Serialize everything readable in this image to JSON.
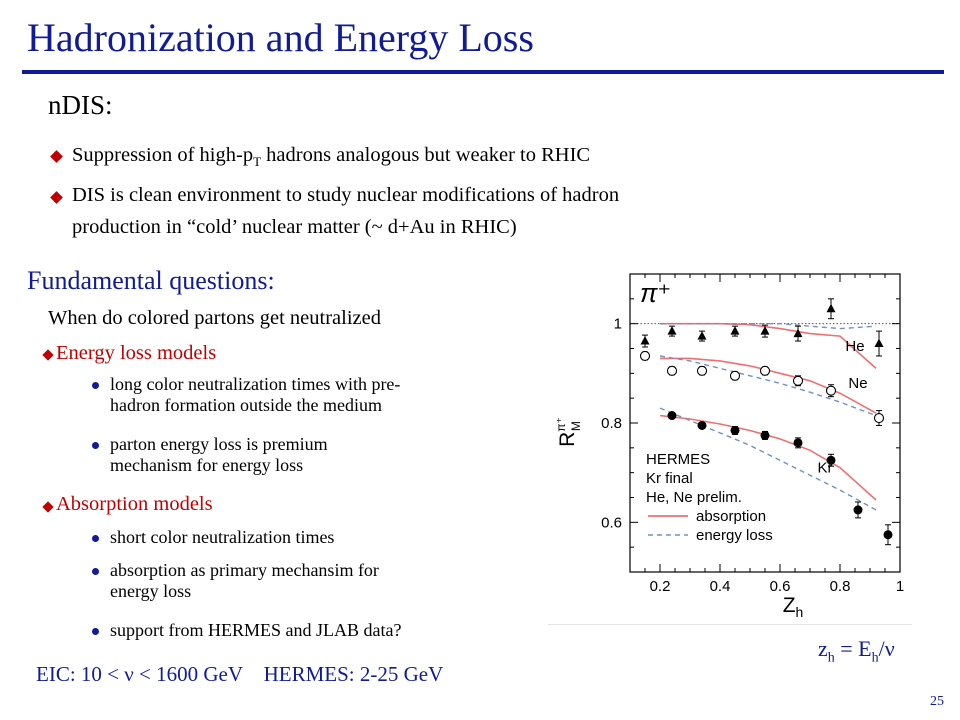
{
  "slide": {
    "title": "Hadronization and Energy Loss",
    "section": "nDIS:",
    "bullets": [
      {
        "pre": "Suppression of high-p",
        "sub": "T",
        "post": " hadrons analogous but weaker to RHIC"
      },
      {
        "line1": "DIS is clean environment to study nuclear modifications of hadron",
        "line2": "production in “cold’ nuclear matter (~ d+Au in RHIC)"
      }
    ],
    "questions_heading": "Fundamental  questions:",
    "question": "When do colored partons get neutralized",
    "models": [
      {
        "label": "Energy loss models",
        "items": [
          {
            "l1": "long color neutralization times with pre-",
            "l2": "hadron formation outside the medium"
          },
          {
            "l1": "parton energy loss is premium",
            "l2": "mechanism for energy loss"
          }
        ]
      },
      {
        "label": "Absorption models",
        "items": [
          {
            "l1": "short color neutralization times",
            "l2": ""
          },
          {
            "l1": "absorption as primary mechansim for",
            "l2": "energy loss"
          },
          {
            "l1": "support from HERMES and JLAB data?",
            "l2": ""
          }
        ]
      }
    ],
    "eic_text": "EIC: 10 < ν < 1600 GeV    HERMES: 2-25 GeV",
    "zh_formula": {
      "z": "z",
      "zsub": "h",
      "eq": " = E",
      "esub": "h",
      "rest": "/ν"
    },
    "page_number": "25"
  },
  "chart_data": {
    "type": "scatter",
    "particle_label": "π⁺",
    "xlabel": "Z",
    "xlabel_sub": "h",
    "ylabel": "R",
    "ylabel_sup": "π⁺",
    "ylabel_sub": "M",
    "xlim": [
      0.1,
      1.0
    ],
    "ylim": [
      0.5,
      1.1
    ],
    "xticks": [
      "0.2",
      "0.4",
      "0.6",
      "0.8",
      "1"
    ],
    "yticks": [
      {
        "v": 0.6,
        "label": "0.6"
      },
      {
        "v": 0.8,
        "label": "0.8"
      },
      {
        "v": 1.0,
        "label": "1"
      }
    ],
    "reference_line": 1.0,
    "legend": {
      "lines": [
        "HERMES",
        "Kr final",
        "He, Ne prelim."
      ],
      "absorption": "absorption",
      "energy_loss": "energy loss"
    },
    "series": [
      {
        "name": "He",
        "marker": "triangle",
        "points": [
          {
            "x": 0.15,
            "y": 0.965,
            "err": 0.012
          },
          {
            "x": 0.24,
            "y": 0.985,
            "err": 0.01
          },
          {
            "x": 0.34,
            "y": 0.975,
            "err": 0.01
          },
          {
            "x": 0.45,
            "y": 0.985,
            "err": 0.01
          },
          {
            "x": 0.55,
            "y": 0.985,
            "err": 0.012
          },
          {
            "x": 0.66,
            "y": 0.98,
            "err": 0.015
          },
          {
            "x": 0.77,
            "y": 1.03,
            "err": 0.02
          },
          {
            "x": 0.93,
            "y": 0.96,
            "err": 0.025
          }
        ],
        "absorption": [
          [
            0.2,
            1.0
          ],
          [
            0.3,
            1.0
          ],
          [
            0.4,
            1.0
          ],
          [
            0.5,
            0.998
          ],
          [
            0.6,
            0.99
          ],
          [
            0.7,
            0.98
          ],
          [
            0.8,
            0.975
          ],
          [
            0.92,
            0.91
          ]
        ],
        "energy_loss": [
          [
            0.2,
            1.0
          ],
          [
            0.4,
            1.0
          ],
          [
            0.6,
            1.0
          ],
          [
            0.8,
            0.99
          ],
          [
            0.92,
            0.995
          ]
        ]
      },
      {
        "name": "Ne",
        "marker": "open-circle",
        "points": [
          {
            "x": 0.15,
            "y": 0.935,
            "err": 0.008
          },
          {
            "x": 0.24,
            "y": 0.905,
            "err": 0.008
          },
          {
            "x": 0.34,
            "y": 0.905,
            "err": 0.008
          },
          {
            "x": 0.45,
            "y": 0.895,
            "err": 0.008
          },
          {
            "x": 0.55,
            "y": 0.905,
            "err": 0.008
          },
          {
            "x": 0.66,
            "y": 0.885,
            "err": 0.01
          },
          {
            "x": 0.77,
            "y": 0.865,
            "err": 0.012
          },
          {
            "x": 0.93,
            "y": 0.81,
            "err": 0.015
          }
        ],
        "absorption": [
          [
            0.2,
            0.93
          ],
          [
            0.3,
            0.93
          ],
          [
            0.4,
            0.925
          ],
          [
            0.5,
            0.915
          ],
          [
            0.6,
            0.9
          ],
          [
            0.7,
            0.885
          ],
          [
            0.8,
            0.86
          ],
          [
            0.92,
            0.82
          ]
        ],
        "energy_loss": [
          [
            0.2,
            0.935
          ],
          [
            0.3,
            0.925
          ],
          [
            0.4,
            0.91
          ],
          [
            0.5,
            0.895
          ],
          [
            0.6,
            0.88
          ],
          [
            0.7,
            0.862
          ],
          [
            0.8,
            0.842
          ],
          [
            0.92,
            0.815
          ]
        ]
      },
      {
        "name": "Kr",
        "marker": "filled-circle",
        "points": [
          {
            "x": 0.24,
            "y": 0.815,
            "err": 0.006
          },
          {
            "x": 0.34,
            "y": 0.795,
            "err": 0.006
          },
          {
            "x": 0.45,
            "y": 0.785,
            "err": 0.008
          },
          {
            "x": 0.55,
            "y": 0.775,
            "err": 0.008
          },
          {
            "x": 0.66,
            "y": 0.76,
            "err": 0.01
          },
          {
            "x": 0.77,
            "y": 0.725,
            "err": 0.012
          },
          {
            "x": 0.86,
            "y": 0.625,
            "err": 0.016
          },
          {
            "x": 0.96,
            "y": 0.575,
            "err": 0.02
          }
        ],
        "absorption": [
          [
            0.2,
            0.815
          ],
          [
            0.3,
            0.808
          ],
          [
            0.4,
            0.798
          ],
          [
            0.5,
            0.785
          ],
          [
            0.6,
            0.768
          ],
          [
            0.7,
            0.745
          ],
          [
            0.8,
            0.71
          ],
          [
            0.92,
            0.645
          ]
        ],
        "energy_loss": [
          [
            0.2,
            0.83
          ],
          [
            0.3,
            0.805
          ],
          [
            0.4,
            0.78
          ],
          [
            0.5,
            0.755
          ],
          [
            0.6,
            0.725
          ],
          [
            0.7,
            0.695
          ],
          [
            0.8,
            0.665
          ],
          [
            0.92,
            0.625
          ]
        ]
      }
    ]
  }
}
